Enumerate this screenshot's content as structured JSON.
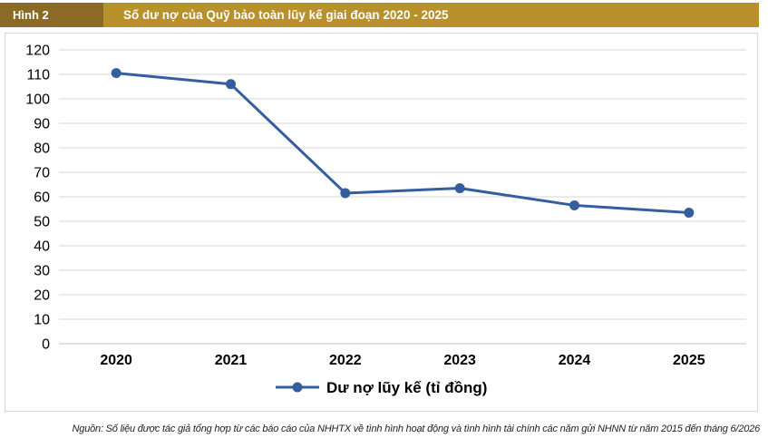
{
  "header": {
    "figure_label": "Hình 2",
    "title": "Số dư nợ của Quỹ bảo toàn lũy kế giai đoạn 2020 - 2025",
    "bar_color": "#b8902c",
    "label_bg_color": "#8a6a25"
  },
  "chart_data": {
    "type": "line",
    "x": [
      "2020",
      "2021",
      "2022",
      "2023",
      "2024",
      "2025"
    ],
    "series": [
      {
        "name": "Dư nợ lũy kế (tỉ đồng)",
        "values": [
          110.5,
          106,
          61.5,
          63.5,
          56.5,
          53.5
        ],
        "color": "#355e9e"
      }
    ],
    "ylim": [
      0,
      120
    ],
    "y_ticks": [
      0,
      10,
      20,
      30,
      40,
      50,
      60,
      70,
      80,
      90,
      100,
      110,
      120
    ],
    "grid": true,
    "legend_position": "bottom-center"
  },
  "source_note": "Nguồn: Số liệu được tác giả tổng hợp từ các báo cáo của NHHTX về tình hình hoạt động và tình hình tài chính các năm gửi NHNN từ năm 2015 đến tháng 6/2026"
}
